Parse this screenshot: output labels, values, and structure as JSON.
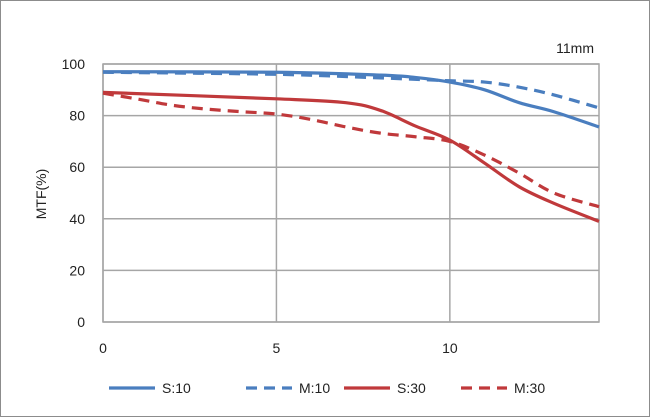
{
  "chart_data": {
    "type": "line",
    "title": "11mm",
    "xlabel": "",
    "ylabel": "MTF(%)",
    "xlim": [
      0,
      14.3
    ],
    "ylim": [
      0,
      100
    ],
    "xticks": [
      0,
      5,
      10
    ],
    "yticks": [
      0,
      20,
      40,
      60,
      80,
      100
    ],
    "grid": true,
    "legend_position": "bottom",
    "series": [
      {
        "name": "S:10",
        "color": "#4a7ebf",
        "dashed": false,
        "x": [
          0,
          5,
          8,
          9,
          10,
          11,
          12,
          13,
          14.3
        ],
        "y": [
          97,
          96.8,
          95.7,
          94.8,
          93,
          90,
          85,
          81.5,
          75.6
        ]
      },
      {
        "name": "M:10",
        "color": "#4a7ebf",
        "dashed": true,
        "x": [
          0,
          5,
          8,
          10,
          11,
          12,
          13,
          14.3
        ],
        "y": [
          96.8,
          96,
          94.6,
          93.5,
          93,
          91,
          88,
          83
        ]
      },
      {
        "name": "S:30",
        "color": "#c0393b",
        "dashed": false,
        "x": [
          0,
          5,
          7,
          8,
          9,
          10,
          11,
          12,
          13,
          14.3
        ],
        "y": [
          89,
          86.5,
          85,
          82,
          76,
          70.5,
          61.6,
          52.4,
          46,
          39
        ]
      },
      {
        "name": "M:30",
        "color": "#c0393b",
        "dashed": true,
        "x": [
          0,
          1,
          2,
          3,
          4,
          5,
          6,
          7,
          8,
          9,
          10,
          11,
          12,
          13,
          14.3
        ],
        "y": [
          88.7,
          86.4,
          84,
          82.5,
          81.5,
          80.6,
          78.5,
          75.6,
          73.2,
          71.8,
          70,
          64.7,
          57.7,
          50,
          44.7
        ]
      }
    ]
  }
}
